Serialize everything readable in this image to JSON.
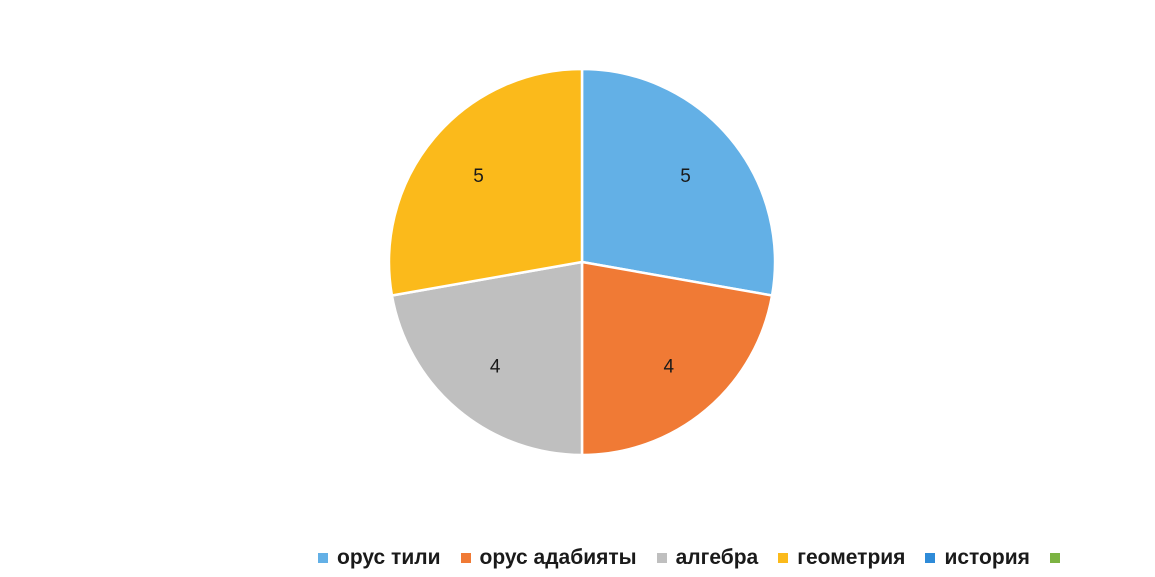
{
  "chart_data": {
    "type": "pie",
    "title": "",
    "slices": [
      {
        "label": "орус тили",
        "value": 5,
        "color": "#63B0E6"
      },
      {
        "label": "орус адабияты",
        "value": 4,
        "color": "#F07A35"
      },
      {
        "label": "алгебра",
        "value": 4,
        "color": "#BFBFBF"
      },
      {
        "label": "геометрия",
        "value": 5,
        "color": "#FBBA1B"
      }
    ],
    "legend": {
      "placement": "bottom",
      "entries": [
        {
          "label": "орус тили",
          "color": "#63B0E6"
        },
        {
          "label": "орус адабияты",
          "color": "#F07A35"
        },
        {
          "label": "алгебра",
          "color": "#BFBFBF"
        },
        {
          "label": "геометрия",
          "color": "#FBBA1B"
        },
        {
          "label": "история",
          "color": "#2E8BD8"
        },
        {
          "label": "",
          "color": "#7CB342"
        }
      ]
    }
  }
}
